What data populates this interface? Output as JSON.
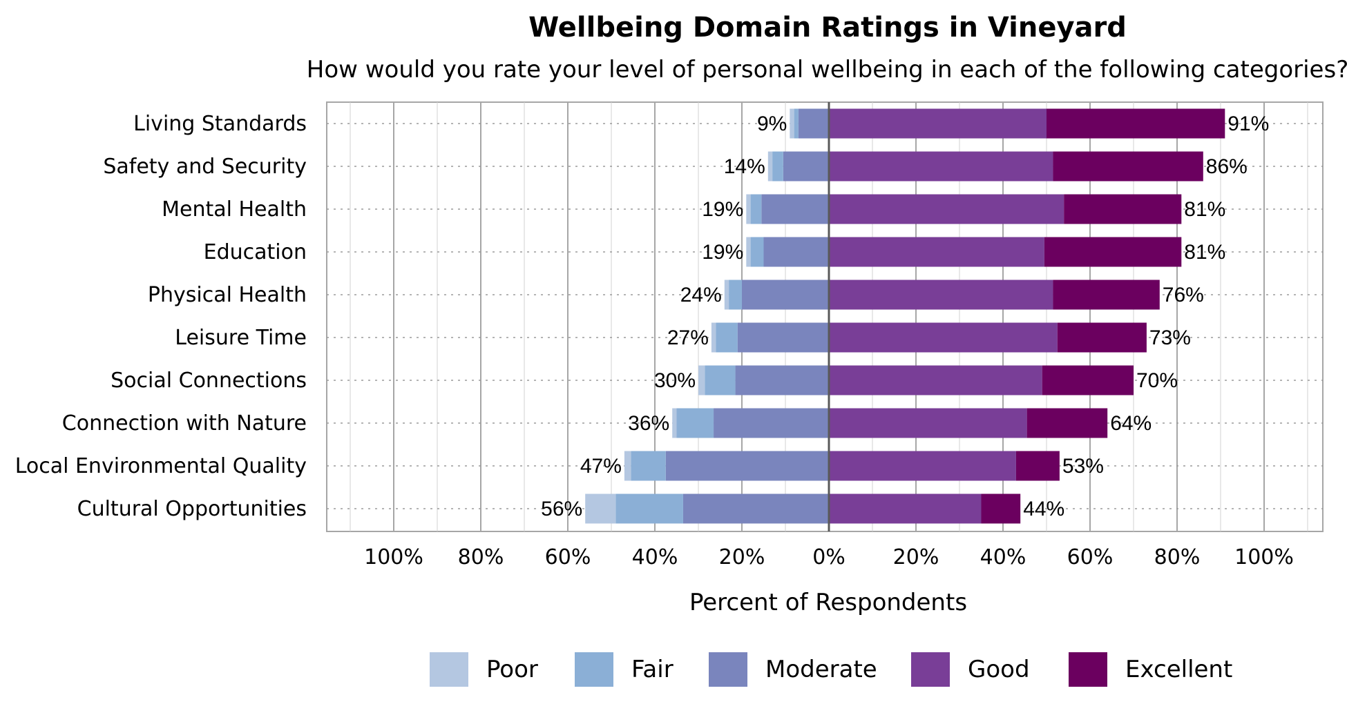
{
  "chart_data": {
    "type": "bar",
    "orientation": "horizontal",
    "stacked": "diverging",
    "title": "Wellbeing Domain Ratings in Vineyard",
    "subtitle": "How would you rate your level of personal wellbeing in each of the following categories?",
    "xlabel": "Percent of Respondents",
    "xlim": [
      -115,
      115
    ],
    "xticks": [
      -100,
      -80,
      -60,
      -40,
      -20,
      0,
      20,
      40,
      60,
      80,
      100
    ],
    "xtick_labels": [
      "100%",
      "80%",
      "60%",
      "40%",
      "20%",
      "0%",
      "20%",
      "40%",
      "60%",
      "80%",
      "100%"
    ],
    "grid": true,
    "legend_position": "bottom",
    "categories": [
      "Living Standards",
      "Safety and Security",
      "Mental Health",
      "Education",
      "Physical Health",
      "Leisure Time",
      "Social Connections",
      "Connection with Nature",
      "Local Environmental Quality",
      "Cultural Opportunities"
    ],
    "series": [
      {
        "name": "Poor",
        "side": "negative",
        "color": "#b4c7e1",
        "values": [
          1,
          1,
          1,
          1,
          1,
          1,
          1.5,
          1,
          1.5,
          7
        ]
      },
      {
        "name": "Fair",
        "side": "negative",
        "color": "#8bafd6",
        "values": [
          1,
          2.5,
          2.5,
          3,
          3,
          5,
          7,
          8.5,
          8,
          15.5
        ]
      },
      {
        "name": "Moderate",
        "side": "negative",
        "color": "#7a85bd",
        "values": [
          7,
          10.5,
          15.5,
          15,
          20,
          21,
          21.5,
          26.5,
          37.5,
          33.5
        ]
      },
      {
        "name": "Good",
        "side": "positive",
        "color": "#793e97",
        "values": [
          50,
          51.5,
          54,
          49.5,
          51.5,
          52.5,
          49,
          45.5,
          43,
          35
        ]
      },
      {
        "name": "Excellent",
        "side": "positive",
        "color": "#6b005f",
        "values": [
          41,
          34.5,
          27,
          31.5,
          24.5,
          20.5,
          21,
          18.5,
          10,
          9
        ]
      }
    ],
    "negative_totals": [
      "9%",
      "14%",
      "19%",
      "19%",
      "24%",
      "27%",
      "30%",
      "36%",
      "47%",
      "56%"
    ],
    "positive_totals": [
      "91%",
      "86%",
      "81%",
      "81%",
      "76%",
      "73%",
      "70%",
      "64%",
      "53%",
      "44%"
    ]
  }
}
